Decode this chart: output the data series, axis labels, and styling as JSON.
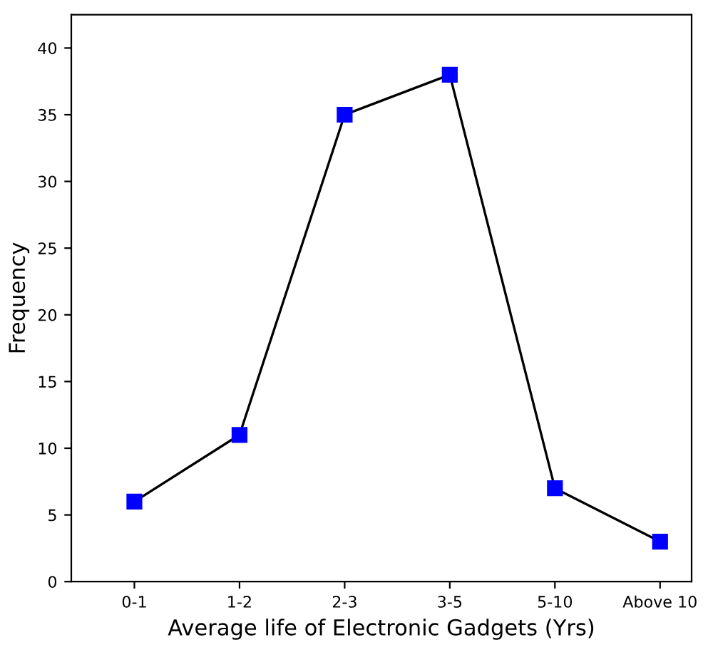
{
  "chart_data": {
    "type": "line",
    "xlabel": "Average life of Electronic Gadgets (Yrs)",
    "ylabel": "Frequency",
    "categories": [
      "0-1",
      "1-2",
      "2-3",
      "3-5",
      "5-10",
      "Above 10"
    ],
    "series": [
      {
        "color": "#0000ff",
        "values": [
          6,
          11,
          35,
          38,
          7,
          3
        ]
      }
    ],
    "ylim": [
      0,
      42.5
    ],
    "yticks": [
      0,
      5,
      10,
      15,
      20,
      25,
      30,
      35,
      40
    ],
    "marker": "square",
    "line_style": "solid",
    "grid": false,
    "legend": false
  }
}
